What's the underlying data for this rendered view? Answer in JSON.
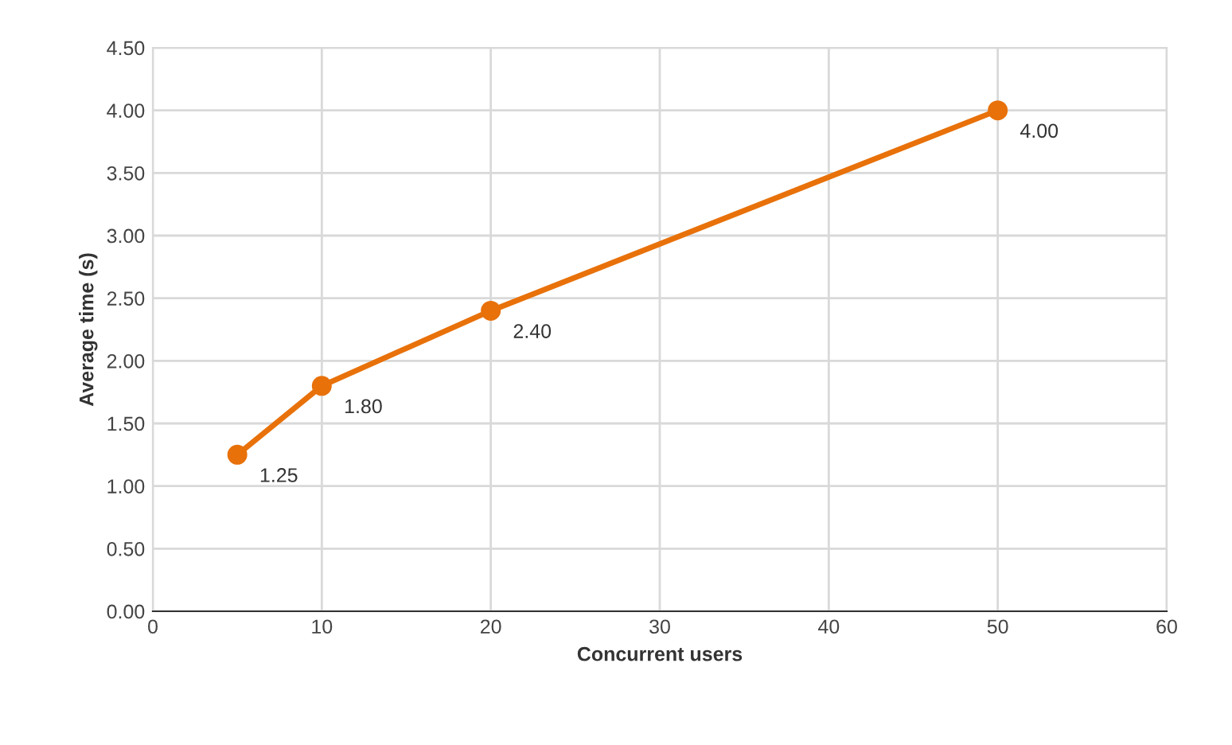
{
  "chart_data": {
    "type": "line",
    "xlabel": "Concurrent users",
    "ylabel": "Average time (s)",
    "x": [
      5,
      10,
      20,
      50
    ],
    "series": [
      {
        "color": "#e8710a",
        "values": [
          1.25,
          1.8,
          2.4,
          4.0
        ],
        "value_labels": [
          "1.25",
          "1.80",
          "2.40",
          "4.00"
        ]
      }
    ],
    "xlim": [
      0,
      60
    ],
    "xticks": [
      0,
      10,
      20,
      30,
      40,
      50,
      60
    ],
    "ylim": [
      0,
      4.5
    ],
    "yticks": [
      {
        "value": 0,
        "label": "0.00"
      },
      {
        "value": 0.5,
        "label": "0.50"
      },
      {
        "value": 1,
        "label": "1.00"
      },
      {
        "value": 1.5,
        "label": "1.50"
      },
      {
        "value": 2,
        "label": "2.00"
      },
      {
        "value": 2.5,
        "label": "2.50"
      },
      {
        "value": 3,
        "label": "3.00"
      },
      {
        "value": 3.5,
        "label": "3.50"
      },
      {
        "value": 4,
        "label": "4.00"
      },
      {
        "value": 4.5,
        "label": "4.50"
      }
    ],
    "grid": true,
    "marker": "circle",
    "line_style": "solid",
    "legend": false
  }
}
